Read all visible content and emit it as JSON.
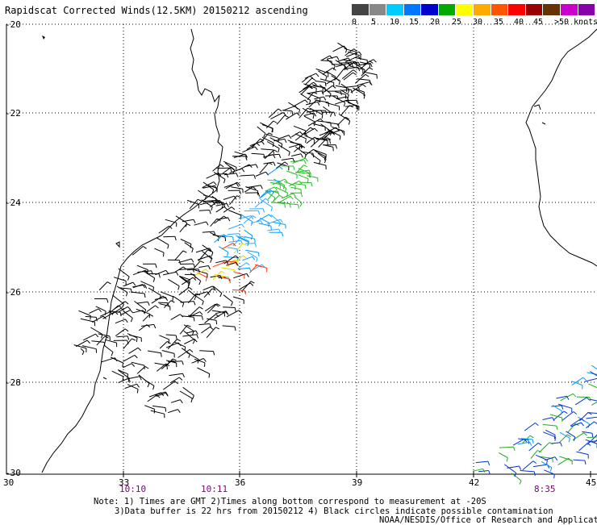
{
  "title": "Rapidscat Corrected Winds(12.5KM) 20150212 ascending",
  "legend": {
    "labels": [
      "0",
      "5",
      "10",
      "15",
      "20",
      "25",
      "30",
      "35",
      "40",
      "45",
      ">50 knots"
    ],
    "colors": [
      "#444444",
      "#888888",
      "#00ccff",
      "#0077ff",
      "#0000cc",
      "#00aa00",
      "#ffff00",
      "#ffaa00",
      "#ff5500",
      "#ff0000",
      "#990000",
      "#663300",
      "#cc00cc",
      "#8800aa"
    ]
  },
  "axes": {
    "lat_labels": [
      "-20",
      "-22",
      "-24",
      "-26",
      "-28",
      "-30"
    ],
    "lon_labels": [
      "30",
      "33",
      "36",
      "39",
      "42",
      "45"
    ]
  },
  "times": [
    "10:10",
    "10:11",
    "8:35"
  ],
  "notes": {
    "line1": "Note: 1) Times are GMT 2)Times along bottom correspond to measurement at -20S",
    "line2": "3)Data buffer is 22 hrs from 20150212 4) Black circles indicate possible contamination",
    "line3": "NOAA/NESDIS/Office of Research and Applications"
  }
}
